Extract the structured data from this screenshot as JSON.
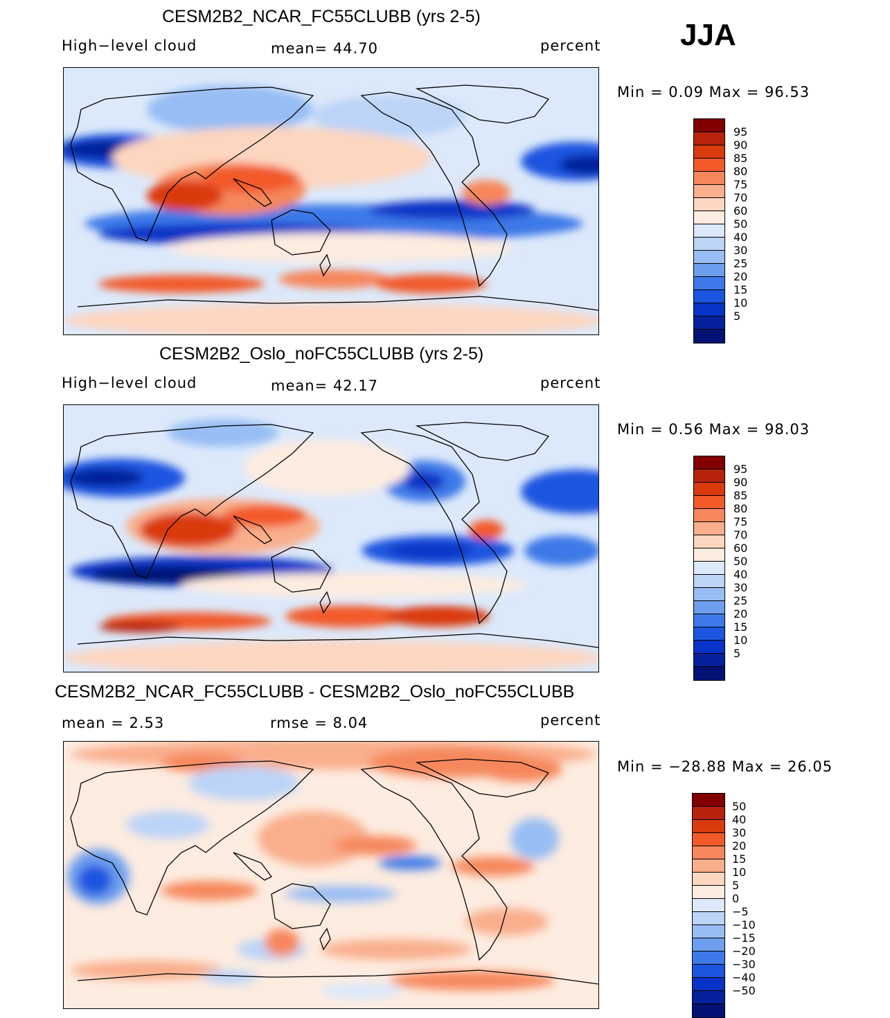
{
  "season": "JJA",
  "palette_main": [
    "#820000",
    "#b8230e",
    "#da3b0c",
    "#f25a2a",
    "#f6875c",
    "#f9ae8c",
    "#fdd6c0",
    "#fdece0",
    "#dce9fb",
    "#bcd4f8",
    "#98bdf4",
    "#6d9fee",
    "#3e79e8",
    "#1c55e0",
    "#0734c6",
    "#05219c",
    "#031274"
  ],
  "palette_diff": [
    "#820000",
    "#b8230e",
    "#da3b0c",
    "#f25a2a",
    "#f6875c",
    "#f9ae8c",
    "#fdd6c0",
    "#fdece0",
    "#dce9fb",
    "#bcd4f8",
    "#98bdf4",
    "#6d9fee",
    "#3e79e8",
    "#1c55e0",
    "#0734c6",
    "#05219c",
    "#031274"
  ],
  "panels": [
    {
      "title": "CESM2B2_NCAR_FC55CLUBB (yrs 2-5)",
      "left_label": "High−level cloud",
      "center_label": "mean=   44.70",
      "right_label": "percent",
      "stats": "Min =     0.09  Max =    96.53",
      "colorbar_labels": [
        "95",
        "90",
        "85",
        "80",
        "75",
        "70",
        "60",
        "50",
        "40",
        "30",
        "25",
        "20",
        "15",
        "10",
        "5"
      ]
    },
    {
      "title": "CESM2B2_Oslo_noFC55CLUBB (yrs 2-5)",
      "left_label": "High−level cloud",
      "center_label": "mean=   42.17",
      "right_label": "percent",
      "stats": "Min =     0.56  Max =    98.03",
      "colorbar_labels": [
        "95",
        "90",
        "85",
        "80",
        "75",
        "70",
        "60",
        "50",
        "40",
        "30",
        "25",
        "20",
        "15",
        "10",
        "5"
      ]
    },
    {
      "title": "CESM2B2_NCAR_FC55CLUBB - CESM2B2_Oslo_noFC55CLUBB",
      "left_label": "mean =     2.53",
      "center_label": "rmse =     8.04",
      "right_label": "percent",
      "stats": "Min = −28.88  Max =    26.05",
      "colorbar_labels": [
        "50",
        "40",
        "30",
        "20",
        "15",
        "10",
        "5",
        "0",
        "−5",
        "−10",
        "−15",
        "−20",
        "−30",
        "−40",
        "−50"
      ]
    }
  ]
}
